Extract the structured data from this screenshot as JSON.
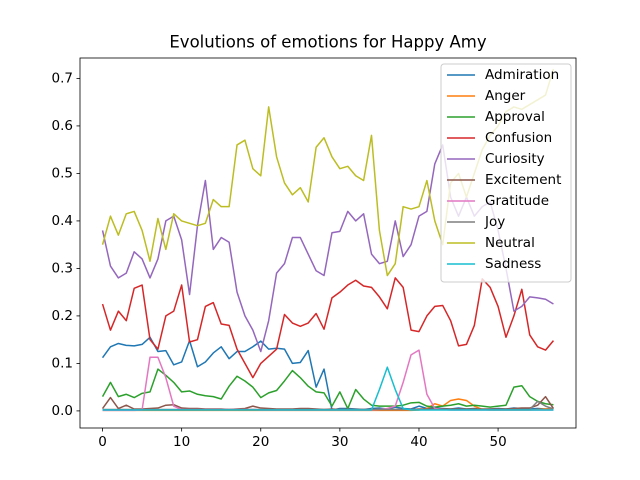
{
  "chart_data": {
    "type": "line",
    "title": "Evolutions of emotions for Happy Amy",
    "x": [
      0,
      1,
      2,
      3,
      4,
      5,
      6,
      7,
      8,
      9,
      10,
      11,
      12,
      13,
      14,
      15,
      16,
      17,
      18,
      19,
      20,
      21,
      22,
      23,
      24,
      25,
      26,
      27,
      28,
      29,
      30,
      31,
      32,
      33,
      34,
      35,
      36,
      37,
      38,
      39,
      40,
      41,
      42,
      43,
      44,
      45,
      46,
      47,
      48,
      49,
      50,
      51,
      52,
      53,
      54,
      55,
      56,
      57
    ],
    "xlim": [
      -2.85,
      59.85
    ],
    "xticks": [
      0,
      10,
      20,
      30,
      40,
      50
    ],
    "ylim": [
      -0.036,
      0.743
    ],
    "yticks": [
      {
        "value": 0,
        "label": "0.0"
      },
      0.1,
      0.2,
      0.3,
      0.4,
      0.5,
      0.6,
      0.7
    ],
    "legend": "upper right",
    "series": [
      {
        "name": "Admiration",
        "color": "#1f77b4",
        "values": [
          0.112,
          0.135,
          0.142,
          0.138,
          0.137,
          0.14,
          0.155,
          0.125,
          0.127,
          0.097,
          0.103,
          0.148,
          0.093,
          0.103,
          0.122,
          0.135,
          0.11,
          0.125,
          0.125,
          0.135,
          0.147,
          0.13,
          0.132,
          0.13,
          0.1,
          0.102,
          0.127,
          0.05,
          0.088,
          0.002,
          0.005,
          0.005,
          0.004,
          0.003,
          0.005,
          0.006,
          0.004,
          0.008,
          0.005,
          0.004,
          0.01,
          0.005,
          0.006,
          0.005,
          0.004,
          0.006,
          0.004,
          0.005,
          0.003,
          0.004,
          0.005,
          0.004,
          0.006,
          0.005,
          0.004,
          0.005,
          0.004,
          0.005
        ]
      },
      {
        "name": "Anger",
        "color": "#ff7f0e",
        "values": [
          0.001,
          0.001,
          0.001,
          0.001,
          0.001,
          0.001,
          0.001,
          0.001,
          0.001,
          0.001,
          0.001,
          0.001,
          0.001,
          0.001,
          0.001,
          0.001,
          0.001,
          0.001,
          0.001,
          0.001,
          0.001,
          0.001,
          0.001,
          0.001,
          0.001,
          0.001,
          0.001,
          0.001,
          0.001,
          0.001,
          0.001,
          0.001,
          0.001,
          0.001,
          0.001,
          0.001,
          0.001,
          0.001,
          0.001,
          0.001,
          0.002,
          0.005,
          0.015,
          0.01,
          0.022,
          0.025,
          0.022,
          0.01,
          0.003,
          0.002,
          0.002,
          0.002,
          0.002,
          0.002,
          0.002,
          0.003,
          0.004,
          0.003
        ]
      },
      {
        "name": "Approval",
        "color": "#2ca02c",
        "values": [
          0.03,
          0.06,
          0.03,
          0.035,
          0.028,
          0.037,
          0.04,
          0.088,
          0.075,
          0.06,
          0.04,
          0.042,
          0.035,
          0.032,
          0.03,
          0.025,
          0.052,
          0.073,
          0.063,
          0.05,
          0.028,
          0.038,
          0.043,
          0.063,
          0.085,
          0.07,
          0.052,
          0.04,
          0.038,
          0.01,
          0.04,
          0.005,
          0.045,
          0.025,
          0.012,
          0.01,
          0.01,
          0.01,
          0.012,
          0.017,
          0.018,
          0.01,
          0.008,
          0.01,
          0.012,
          0.015,
          0.01,
          0.012,
          0.01,
          0.008,
          0.01,
          0.012,
          0.05,
          0.053,
          0.03,
          0.02,
          0.015,
          0.013
        ]
      },
      {
        "name": "Confusion",
        "color": "#d62728",
        "values": [
          0.225,
          0.17,
          0.21,
          0.19,
          0.258,
          0.265,
          0.15,
          0.13,
          0.2,
          0.21,
          0.265,
          0.145,
          0.15,
          0.22,
          0.228,
          0.183,
          0.18,
          0.13,
          0.1,
          0.07,
          0.1,
          0.115,
          0.13,
          0.203,
          0.185,
          0.178,
          0.185,
          0.205,
          0.172,
          0.238,
          0.25,
          0.265,
          0.275,
          0.263,
          0.26,
          0.24,
          0.215,
          0.28,
          0.26,
          0.17,
          0.167,
          0.2,
          0.22,
          0.222,
          0.19,
          0.137,
          0.14,
          0.18,
          0.278,
          0.26,
          0.22,
          0.155,
          0.2,
          0.256,
          0.16,
          0.135,
          0.128,
          0.148
        ]
      },
      {
        "name": "Curiosity",
        "color": "#9467bd",
        "values": [
          0.38,
          0.305,
          0.28,
          0.29,
          0.335,
          0.32,
          0.28,
          0.32,
          0.4,
          0.41,
          0.36,
          0.245,
          0.39,
          0.485,
          0.34,
          0.365,
          0.355,
          0.25,
          0.2,
          0.17,
          0.125,
          0.19,
          0.29,
          0.31,
          0.365,
          0.365,
          0.33,
          0.295,
          0.285,
          0.375,
          0.378,
          0.42,
          0.4,
          0.415,
          0.33,
          0.31,
          0.315,
          0.4,
          0.325,
          0.35,
          0.41,
          0.42,
          0.52,
          0.56,
          0.45,
          0.41,
          0.45,
          0.41,
          0.43,
          0.44,
          0.38,
          0.3,
          0.21,
          0.22,
          0.24,
          0.238,
          0.235,
          0.225
        ]
      },
      {
        "name": "Excitement",
        "color": "#8c564b",
        "values": [
          0.005,
          0.028,
          0.005,
          0.012,
          0.004,
          0.004,
          0.005,
          0.006,
          0.012,
          0.013,
          0.006,
          0.005,
          0.005,
          0.004,
          0.004,
          0.004,
          0.003,
          0.004,
          0.005,
          0.01,
          0.006,
          0.005,
          0.004,
          0.004,
          0.004,
          0.005,
          0.005,
          0.004,
          0.003,
          0.004,
          0.003,
          0.003,
          0.003,
          0.003,
          0.003,
          0.003,
          0.003,
          0.003,
          0.003,
          0.003,
          0.004,
          0.004,
          0.004,
          0.004,
          0.004,
          0.004,
          0.004,
          0.004,
          0.004,
          0.004,
          0.004,
          0.004,
          0.005,
          0.006,
          0.006,
          0.012,
          0.03,
          0.005
        ]
      },
      {
        "name": "Gratitude",
        "color": "#e377c2",
        "values": [
          0.001,
          0.001,
          0.001,
          0.001,
          0.001,
          0.002,
          0.113,
          0.113,
          0.07,
          0.01,
          0.003,
          0.003,
          0.003,
          0.003,
          0.003,
          0.003,
          0.003,
          0.003,
          0.003,
          0.003,
          0.002,
          0.002,
          0.002,
          0.002,
          0.002,
          0.002,
          0.002,
          0.002,
          0.002,
          0.002,
          0.002,
          0.002,
          0.002,
          0.002,
          0.002,
          0.003,
          0.005,
          0.01,
          0.06,
          0.118,
          0.128,
          0.035,
          0.005,
          0.003,
          0.002,
          0.002,
          0.002,
          0.002,
          0.002,
          0.002,
          0.002,
          0.002,
          0.002,
          0.002,
          0.002,
          0.002,
          0.002,
          0.002
        ]
      },
      {
        "name": "Joy",
        "color": "#7f7f7f",
        "values": [
          0.003,
          0.003,
          0.003,
          0.003,
          0.003,
          0.003,
          0.003,
          0.003,
          0.003,
          0.003,
          0.003,
          0.003,
          0.003,
          0.003,
          0.003,
          0.003,
          0.003,
          0.003,
          0.003,
          0.003,
          0.003,
          0.003,
          0.003,
          0.003,
          0.003,
          0.003,
          0.003,
          0.003,
          0.003,
          0.003,
          0.003,
          0.003,
          0.003,
          0.003,
          0.003,
          0.003,
          0.003,
          0.003,
          0.003,
          0.003,
          0.003,
          0.003,
          0.003,
          0.003,
          0.003,
          0.003,
          0.003,
          0.003,
          0.003,
          0.003,
          0.003,
          0.003,
          0.003,
          0.003,
          0.003,
          0.02,
          0.01,
          0.004
        ]
      },
      {
        "name": "Neutral",
        "color": "#bcbd22",
        "values": [
          0.35,
          0.41,
          0.37,
          0.415,
          0.42,
          0.38,
          0.315,
          0.405,
          0.34,
          0.415,
          0.4,
          0.395,
          0.39,
          0.395,
          0.445,
          0.43,
          0.43,
          0.56,
          0.57,
          0.51,
          0.495,
          0.64,
          0.535,
          0.48,
          0.455,
          0.47,
          0.44,
          0.555,
          0.575,
          0.535,
          0.51,
          0.515,
          0.495,
          0.485,
          0.58,
          0.38,
          0.285,
          0.31,
          0.43,
          0.425,
          0.43,
          0.485,
          0.4,
          0.35,
          0.48,
          0.5,
          0.45,
          0.5,
          0.55,
          0.58,
          0.6,
          0.63,
          0.64,
          0.635,
          0.645,
          0.655,
          0.665,
          0.72
        ]
      },
      {
        "name": "Sadness",
        "color": "#17becf",
        "values": [
          0.002,
          0.002,
          0.002,
          0.002,
          0.002,
          0.002,
          0.002,
          0.002,
          0.002,
          0.002,
          0.002,
          0.002,
          0.002,
          0.002,
          0.002,
          0.002,
          0.002,
          0.002,
          0.002,
          0.002,
          0.002,
          0.002,
          0.002,
          0.002,
          0.002,
          0.002,
          0.002,
          0.002,
          0.002,
          0.002,
          0.002,
          0.002,
          0.002,
          0.002,
          0.002,
          0.045,
          0.092,
          0.045,
          0.005,
          0.002,
          0.002,
          0.002,
          0.002,
          0.002,
          0.002,
          0.002,
          0.002,
          0.002,
          0.002,
          0.002,
          0.002,
          0.002,
          0.002,
          0.002,
          0.002,
          0.002,
          0.002,
          0.002
        ]
      }
    ]
  }
}
